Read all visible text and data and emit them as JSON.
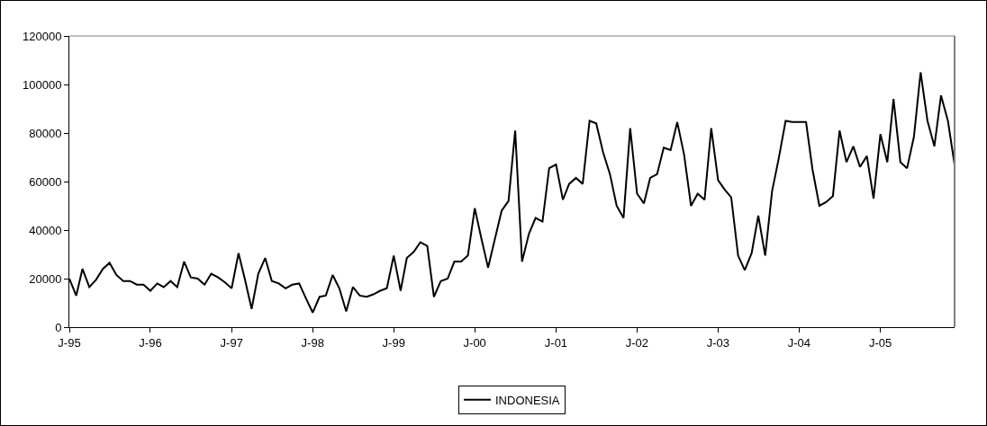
{
  "chart_data": {
    "type": "line",
    "legend": "bottom",
    "grid": false,
    "marker": "none",
    "line_style": "solid",
    "x": [
      "1995-01",
      "1995-02",
      "1995-03",
      "1995-04",
      "1995-05",
      "1995-06",
      "1995-07",
      "1995-08",
      "1995-09",
      "1995-10",
      "1995-11",
      "1995-12",
      "1996-01",
      "1996-02",
      "1996-03",
      "1996-04",
      "1996-05",
      "1996-06",
      "1996-07",
      "1996-08",
      "1996-09",
      "1996-10",
      "1996-11",
      "1996-12",
      "1997-01",
      "1997-02",
      "1997-03",
      "1997-04",
      "1997-05",
      "1997-06",
      "1997-07",
      "1997-08",
      "1997-09",
      "1997-10",
      "1997-11",
      "1997-12",
      "1998-01",
      "1998-02",
      "1998-03",
      "1998-04",
      "1998-05",
      "1998-06",
      "1998-07",
      "1998-08",
      "1998-09",
      "1998-10",
      "1998-11",
      "1998-12",
      "1999-01",
      "1999-02",
      "1999-03",
      "1999-04",
      "1999-05",
      "1999-06",
      "1999-07",
      "1999-08",
      "1999-09",
      "1999-10",
      "1999-11",
      "1999-12",
      "2000-01",
      "2000-02",
      "2000-03",
      "2000-04",
      "2000-05",
      "2000-06",
      "2000-07",
      "2000-08",
      "2000-09",
      "2000-10",
      "2000-11",
      "2000-12",
      "2001-01",
      "2001-02",
      "2001-03",
      "2001-04",
      "2001-05",
      "2001-06",
      "2001-07",
      "2001-08",
      "2001-09",
      "2001-10",
      "2001-11",
      "2001-12",
      "2002-01",
      "2002-02",
      "2002-03",
      "2002-04",
      "2002-05",
      "2002-06",
      "2002-07",
      "2002-08",
      "2002-09",
      "2002-10",
      "2002-11",
      "2002-12",
      "2003-01",
      "2003-02",
      "2003-03",
      "2003-04",
      "2003-05",
      "2003-06",
      "2003-07",
      "2003-08",
      "2003-09",
      "2003-10",
      "2003-11",
      "2003-12",
      "2004-01",
      "2004-02",
      "2004-03",
      "2004-04",
      "2004-05",
      "2004-06",
      "2004-07",
      "2004-08",
      "2004-09",
      "2004-10",
      "2004-11",
      "2004-12",
      "2005-01",
      "2005-02",
      "2005-03",
      "2005-04",
      "2005-05",
      "2005-06",
      "2005-07",
      "2005-08",
      "2005-09",
      "2005-10",
      "2005-11",
      "2005-12"
    ],
    "series": [
      {
        "name": "INDONESIA",
        "color": "#000000",
        "values": [
          20000,
          13000,
          24000,
          16500,
          19500,
          24000,
          26500,
          21500,
          19000,
          19000,
          17500,
          17500,
          15000,
          18000,
          16500,
          19000,
          16500,
          27000,
          20500,
          20000,
          17500,
          22000,
          20500,
          18500,
          16000,
          30500,
          20000,
          7500,
          22000,
          28500,
          19000,
          18000,
          16000,
          17500,
          18000,
          12000,
          6000,
          12500,
          13000,
          21500,
          16000,
          6500,
          16500,
          13000,
          12500,
          13500,
          15000,
          16000,
          29500,
          15000,
          28500,
          31000,
          35000,
          33500,
          12500,
          19000,
          20000,
          27000,
          27000,
          29500,
          49000,
          36000,
          24500,
          36500,
          48000,
          52000,
          81000,
          27000,
          38500,
          45000,
          43500,
          65500,
          67000,
          52500,
          59000,
          61500,
          59000,
          85000,
          84000,
          72000,
          63000,
          50000,
          45000,
          82000,
          55000,
          51000,
          61500,
          63000,
          74000,
          73000,
          84500,
          71000,
          50000,
          55000,
          52500,
          82000,
          60500,
          56500,
          53500,
          29500,
          23500,
          30500,
          46000,
          29500,
          56000,
          69500,
          85000,
          84500,
          84500,
          84500,
          65000,
          50000,
          51500,
          54000,
          81000,
          68000,
          74500,
          66000,
          70500,
          53000,
          79500,
          68000,
          94000,
          68000,
          65500,
          78500,
          105000,
          85000,
          74500,
          95500,
          85000,
          67000
        ]
      }
    ],
    "xlim": [
      "1995-01",
      "2005-12"
    ],
    "xticks": [
      {
        "value": "1995-01",
        "label": "J-95"
      },
      {
        "value": "1996-01",
        "label": "J-96"
      },
      {
        "value": "1997-01",
        "label": "J-97"
      },
      {
        "value": "1998-01",
        "label": "J-98"
      },
      {
        "value": "1999-01",
        "label": "J-99"
      },
      {
        "value": "2000-01",
        "label": "J-00"
      },
      {
        "value": "2001-01",
        "label": "J-01"
      },
      {
        "value": "2002-01",
        "label": "J-02"
      },
      {
        "value": "2003-01",
        "label": "J-03"
      },
      {
        "value": "2004-01",
        "label": "J-04"
      },
      {
        "value": "2005-01",
        "label": "J-05"
      }
    ],
    "ylim": [
      0,
      120000
    ],
    "yticks": [
      0,
      20000,
      40000,
      60000,
      80000,
      100000,
      120000
    ]
  }
}
